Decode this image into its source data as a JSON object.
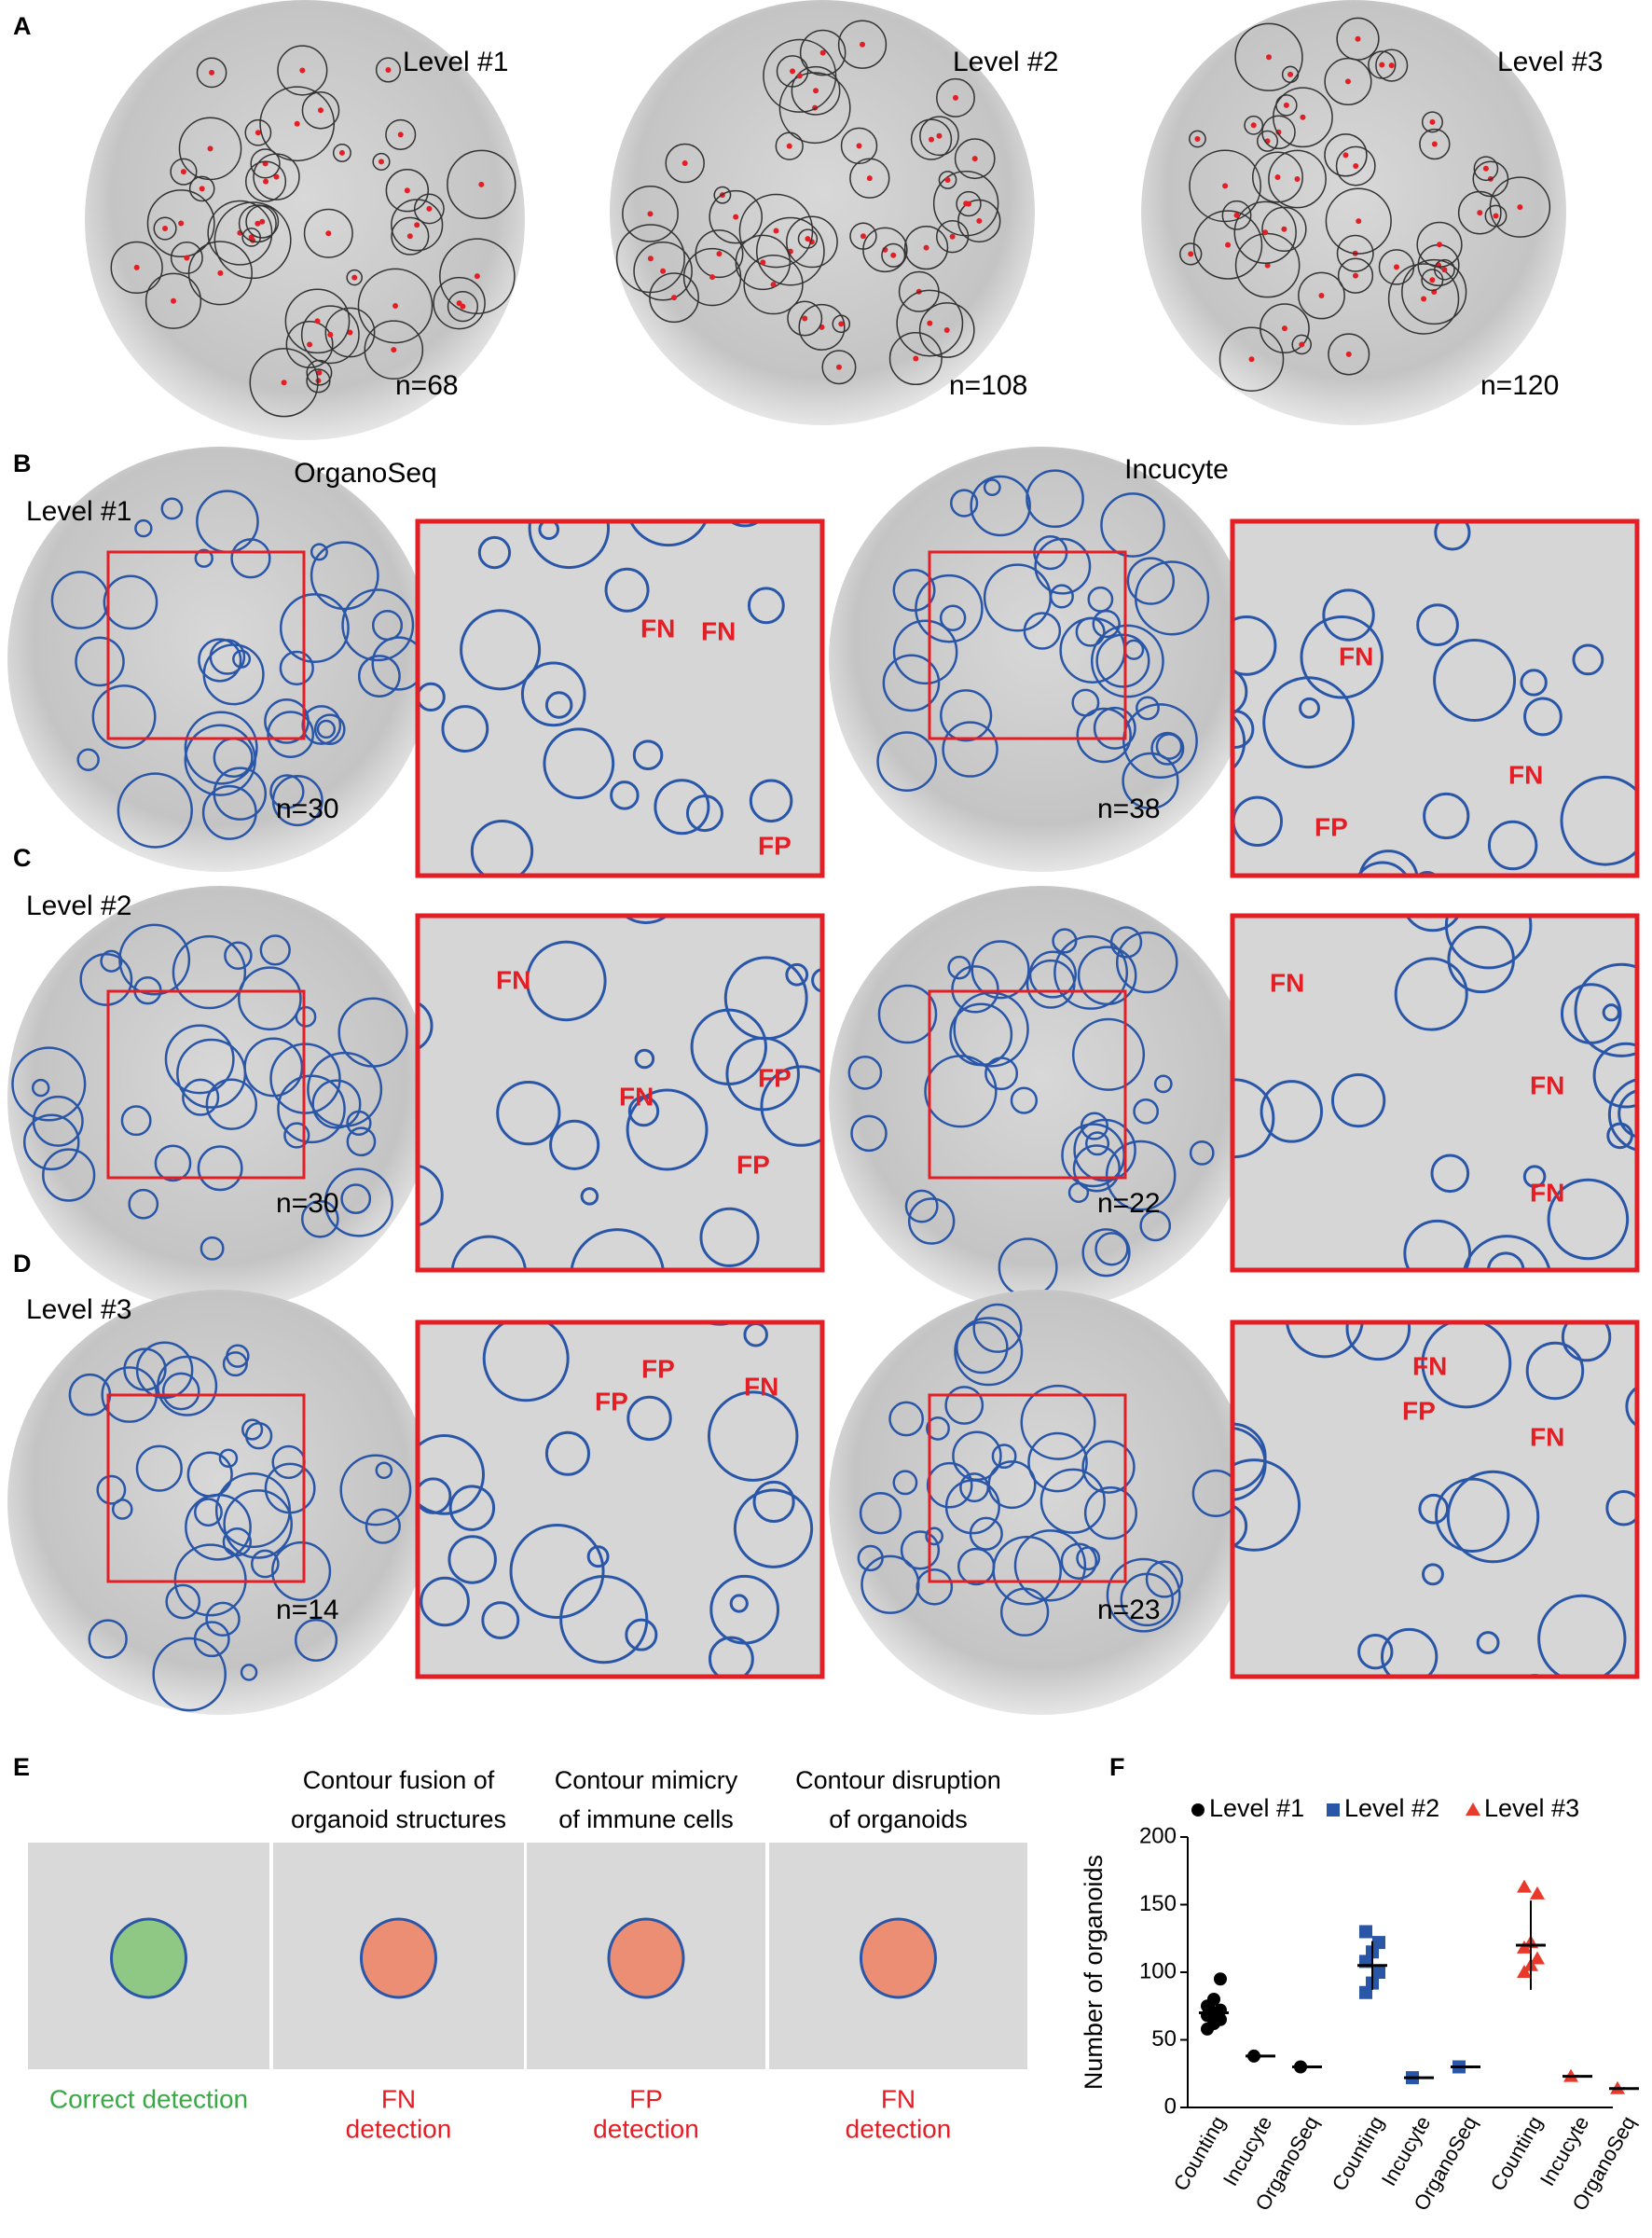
{
  "panel_a": {
    "label": "A",
    "images": [
      {
        "title": "Level #1",
        "count": "n=68"
      },
      {
        "title": "Level #2",
        "count": "n=108"
      },
      {
        "title": "Level #3",
        "count": "n=120"
      }
    ]
  },
  "column_titles": [
    "OrganoSeq",
    "Incucyte"
  ],
  "rows": [
    {
      "label": "B",
      "level": "Level #1",
      "organoseq": {
        "count": "n=30",
        "annotations": [
          "FN",
          "FN",
          "FP"
        ]
      },
      "incucyte": {
        "count": "n=38",
        "annotations": [
          "FN",
          "FN",
          "FP"
        ]
      }
    },
    {
      "label": "C",
      "level": "Level #2",
      "organoseq": {
        "count": "n=30",
        "annotations": [
          "FN",
          "FN",
          "FP",
          "FP"
        ]
      },
      "incucyte": {
        "count": "n=22",
        "annotations": [
          "FN",
          "FN",
          "FN"
        ]
      }
    },
    {
      "label": "D",
      "level": "Level #3",
      "organoseq": {
        "count": "n=14",
        "annotations": [
          "FP",
          "FP",
          "FN"
        ]
      },
      "incucyte": {
        "count": "n=23",
        "annotations": [
          "FN",
          "FP",
          "FN"
        ]
      }
    }
  ],
  "panel_e": {
    "label": "E",
    "items": [
      {
        "title": [],
        "caption": [
          "Correct detection"
        ]
      },
      {
        "title": [
          "Contour fusion of",
          "organoid structures"
        ],
        "caption": [
          "FN",
          "detection"
        ]
      },
      {
        "title": [
          "Contour mimicry",
          "of immune cells"
        ],
        "caption": [
          "FP",
          "detection"
        ]
      },
      {
        "title": [
          "Contour disruption",
          "of organoids"
        ],
        "caption": [
          "FN",
          "detection"
        ]
      }
    ]
  },
  "chart_data": {
    "label": "F",
    "type": "scatter",
    "y_label": "Number of organoids",
    "categories": [
      "Counting",
      "Incucyte",
      "OrganoSeq",
      "Counting",
      "Incucyte",
      "OrganoSeq",
      "Counting",
      "Incucyte",
      "OrganoSeq"
    ],
    "ylim": [
      0,
      200
    ],
    "yticks": [
      0,
      50,
      100,
      150,
      200
    ],
    "series": [
      {
        "name": "Level #1",
        "color": "#000000",
        "marker": "circle",
        "values": [
          [
            58,
            62,
            65,
            68,
            70,
            72,
            75,
            80,
            95
          ],
          [
            38
          ],
          [
            30
          ]
        ],
        "mean": [
          70,
          38,
          30
        ],
        "sd": [
          10,
          1,
          1
        ]
      },
      {
        "name": "Level #2",
        "color": "#2a56a8",
        "marker": "square",
        "values": [
          [
            85,
            92,
            100,
            108,
            115,
            122,
            130
          ],
          [
            22
          ],
          [
            30
          ]
        ],
        "mean": [
          105,
          22,
          30
        ],
        "sd": [
          18,
          1,
          1
        ]
      },
      {
        "name": "Level #3",
        "color": "#e8392a",
        "marker": "triangle",
        "values": [
          [
            100,
            105,
            110,
            118,
            122,
            158,
            163
          ],
          [
            23
          ],
          [
            14
          ]
        ],
        "mean": [
          120,
          23,
          14
        ],
        "sd": [
          33,
          1,
          1
        ]
      }
    ]
  }
}
